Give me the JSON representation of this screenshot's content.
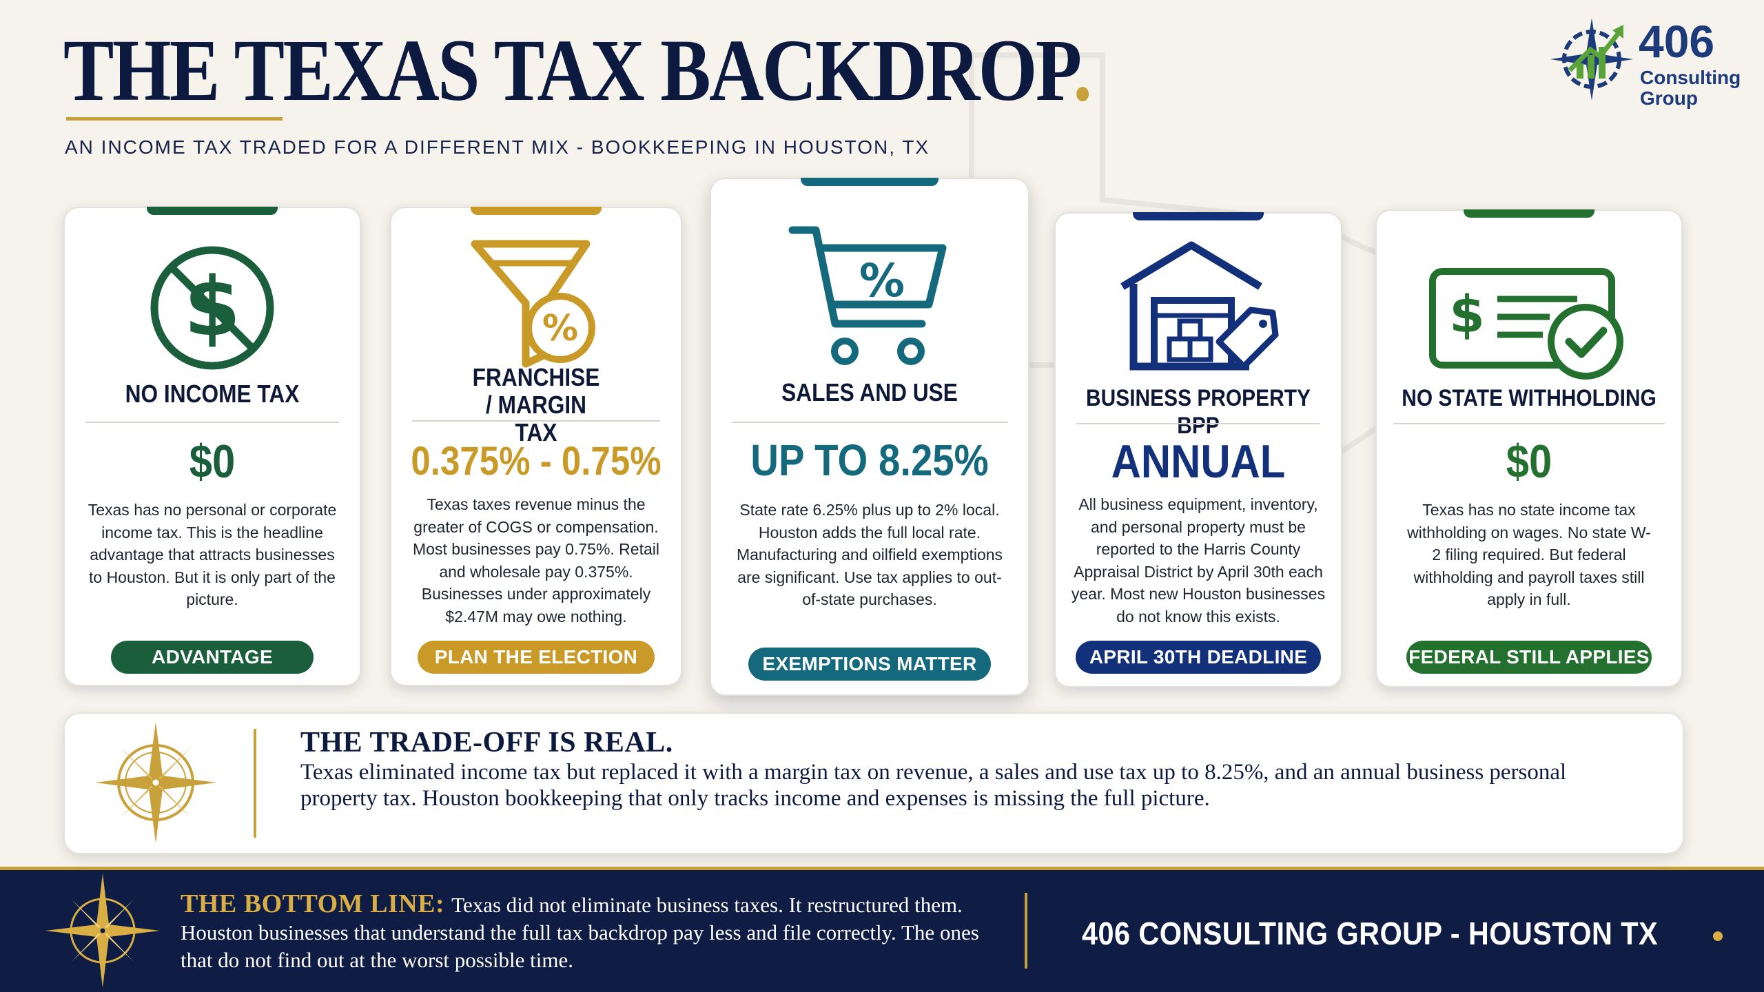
{
  "header": {
    "title": "THE TEXAS TAX BACKDROP",
    "title_dot": ".",
    "subtitle": "AN INCOME TAX TRADED FOR A DIFFERENT MIX  -  BOOKKEEPING IN HOUSTON, TX"
  },
  "logo": {
    "number": "406",
    "name_line1": "Consulting",
    "name_line2": "Group"
  },
  "cards": [
    {
      "heading": "NO INCOME TAX",
      "value": "$0",
      "desc": "Texas has no personal or corporate income tax. This is the headline advantage that attracts businesses to Houston. But it is only part of the picture.",
      "pill": "ADVANTAGE",
      "icon": "no-dollar-icon",
      "color": "#1a5e3c"
    },
    {
      "heading": "FRANCHISE / MARGIN TAX",
      "value": "0.375% - 0.75%",
      "desc": "Texas taxes revenue minus the greater of COGS or compensation. Most businesses pay 0.75%. Retail and wholesale pay 0.375%. Businesses under approximately $2.47M may owe nothing.",
      "pill": "PLAN THE ELECTION",
      "icon": "funnel-percent-icon",
      "color": "#c99a28"
    },
    {
      "heading": "SALES AND USE",
      "value": "UP TO 8.25%",
      "desc": "State rate 6.25% plus up to 2% local. Houston adds the full local rate. Manufacturing and oilfield exemptions are significant. Use tax applies to out-of-state purchases.",
      "pill": "EXEMPTIONS MATTER",
      "icon": "cart-percent-icon",
      "color": "#146a7c"
    },
    {
      "heading": "BUSINESS PROPERTY BPP",
      "value": "ANNUAL",
      "desc": "All business equipment, inventory, and personal property must be reported to the Harris County Appraisal District by April 30th each year. Most new Houston businesses do not know this exists.",
      "pill": "APRIL 30TH DEADLINE",
      "icon": "warehouse-tag-icon",
      "color": "#13307a"
    },
    {
      "heading": "NO STATE WITHHOLDING",
      "value": "$0",
      "desc": "Texas has no state income tax withholding on wages. No state W-2 filing required. But federal withholding and payroll taxes still apply in full.",
      "pill": "FEDERAL STILL APPLIES",
      "icon": "check-paystub-icon",
      "color": "#23702f"
    }
  ],
  "tradeoff": {
    "title": "THE TRADE-OFF IS REAL.",
    "body": "Texas eliminated income tax but replaced it with a margin tax on revenue, a sales and use tax up to 8.25%, and an annual business personal property tax. Houston bookkeeping that only tracks income and expenses is missing the full picture."
  },
  "footer": {
    "label": "THE BOTTOM LINE:",
    "text": "Texas did not eliminate business taxes. It restructured them. Houston businesses that understand the full tax backdrop pay less and file correctly. The ones that do not find out at the worst possible time.",
    "brand": "406 CONSULTING GROUP - HOUSTON TX"
  },
  "colors": {
    "navy": "#0f1d45",
    "gold": "#c9a13a",
    "background": "#f6f3ec"
  }
}
